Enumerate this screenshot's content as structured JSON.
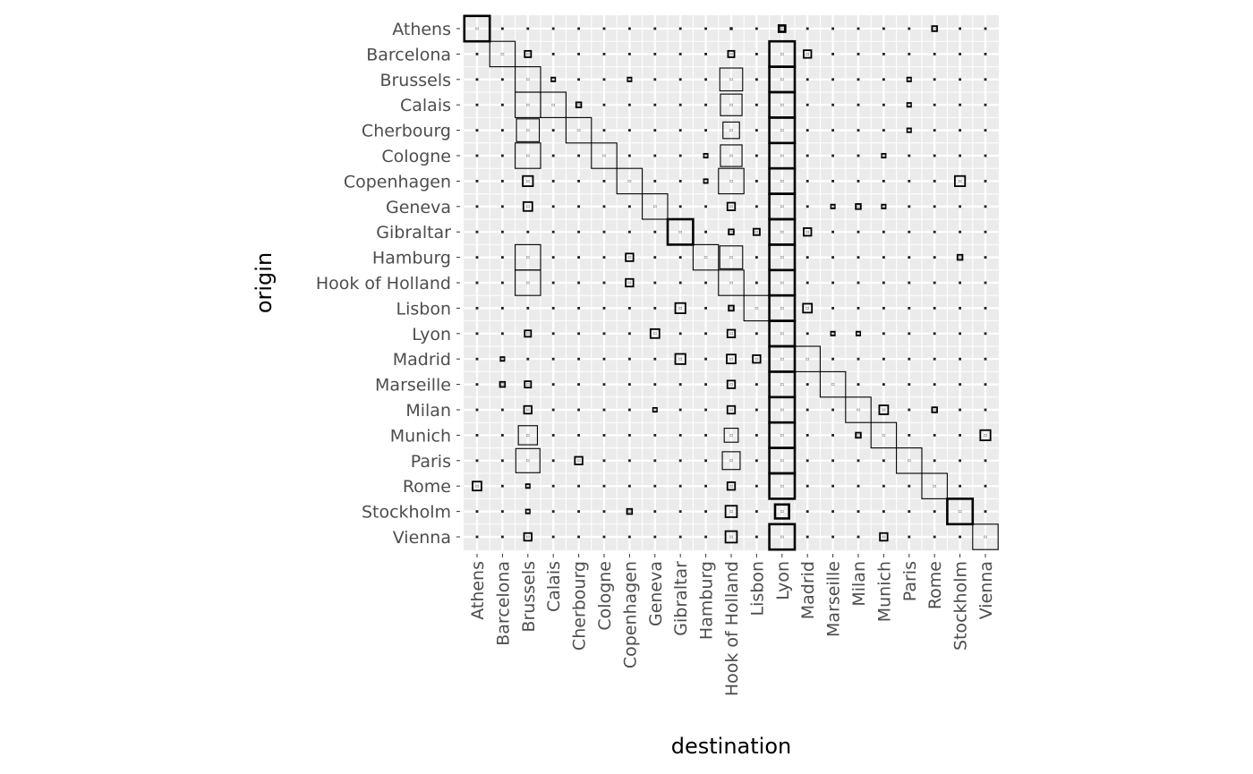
{
  "chart_data": {
    "type": "heatmap",
    "mark": "square sized by value",
    "xlabel": "destination",
    "ylabel": "origin",
    "grid": true,
    "categories": [
      "Athens",
      "Barcelona",
      "Brussels",
      "Calais",
      "Cherbourg",
      "Cologne",
      "Copenhagen",
      "Geneva",
      "Gibraltar",
      "Hamburg",
      "Hook of Holland",
      "Lisbon",
      "Lyon",
      "Madrid",
      "Marseille",
      "Milan",
      "Munich",
      "Paris",
      "Rome",
      "Stockholm",
      "Vienna"
    ],
    "default_value": 0.1,
    "values": {
      "Athens": {
        "Athens": 1.0,
        "Lyon": 0.25,
        "Rome": 0.2,
        "Hook of Holland": 0.12
      },
      "Barcelona": {
        "Barcelona": 1.0,
        "Brussels": 0.25,
        "Hook of Holland": 0.25,
        "Lyon": 1.0,
        "Madrid": 0.3
      },
      "Brussels": {
        "Brussels": 1.0,
        "Calais": 0.15,
        "Copenhagen": 0.15,
        "Hook of Holland": 0.9,
        "Lyon": 1.0,
        "Paris": 0.15
      },
      "Calais": {
        "Brussels": 1.0,
        "Calais": 1.0,
        "Cherbourg": 0.2,
        "Hook of Holland": 0.85,
        "Lyon": 1.0,
        "Paris": 0.15
      },
      "Cherbourg": {
        "Brussels": 0.9,
        "Cherbourg": 1.0,
        "Hook of Holland": 0.65,
        "Lyon": 1.0,
        "Paris": 0.15
      },
      "Cologne": {
        "Brussels": 1.0,
        "Cologne": 1.0,
        "Hamburg": 0.15,
        "Hook of Holland": 0.85,
        "Lyon": 1.0,
        "Munich": 0.15
      },
      "Copenhagen": {
        "Brussels": 0.4,
        "Copenhagen": 1.0,
        "Hamburg": 0.15,
        "Hook of Holland": 1.0,
        "Lyon": 1.0,
        "Stockholm": 0.4
      },
      "Geneva": {
        "Brussels": 0.35,
        "Geneva": 1.0,
        "Hook of Holland": 0.3,
        "Lyon": 1.0,
        "Marseille": 0.15,
        "Milan": 0.2,
        "Munich": 0.15
      },
      "Gibraltar": {
        "Gibraltar": 1.0,
        "Hook of Holland": 0.2,
        "Lisbon": 0.25,
        "Lyon": 1.0,
        "Madrid": 0.3
      },
      "Hamburg": {
        "Brussels": 1.0,
        "Copenhagen": 0.3,
        "Hamburg": 1.0,
        "Hook of Holland": 0.9,
        "Lyon": 1.0,
        "Stockholm": 0.2
      },
      "Hook of Holland": {
        "Brussels": 1.0,
        "Copenhagen": 0.3,
        "Hook of Holland": 1.0,
        "Lyon": 1.0
      },
      "Lisbon": {
        "Gibraltar": 0.4,
        "Hook of Holland": 0.2,
        "Lisbon": 1.0,
        "Lyon": 1.0,
        "Madrid": 0.35
      },
      "Lyon": {
        "Brussels": 0.25,
        "Geneva": 0.35,
        "Hook of Holland": 0.3,
        "Lyon": 1.0,
        "Marseille": 0.15,
        "Milan": 0.15
      },
      "Madrid": {
        "Barcelona": 0.15,
        "Gibraltar": 0.4,
        "Hook of Holland": 0.35,
        "Lisbon": 0.3,
        "Lyon": 1.0,
        "Madrid": 1.0
      },
      "Marseille": {
        "Barcelona": 0.2,
        "Brussels": 0.25,
        "Hook of Holland": 0.3,
        "Lyon": 1.0,
        "Marseille": 1.0
      },
      "Milan": {
        "Brussels": 0.3,
        "Geneva": 0.15,
        "Hook of Holland": 0.3,
        "Lyon": 1.0,
        "Milan": 1.0,
        "Munich": 0.35,
        "Rome": 0.2
      },
      "Munich": {
        "Brussels": 0.75,
        "Hook of Holland": 0.55,
        "Lyon": 1.0,
        "Milan": 0.2,
        "Munich": 1.0,
        "Vienna": 0.4
      },
      "Paris": {
        "Brussels": 0.95,
        "Cherbourg": 0.3,
        "Hook of Holland": 0.7,
        "Lyon": 1.0,
        "Paris": 1.0
      },
      "Rome": {
        "Athens": 0.35,
        "Brussels": 0.15,
        "Hook of Holland": 0.3,
        "Lyon": 1.0,
        "Rome": 1.0
      },
      "Stockholm": {
        "Brussels": 0.15,
        "Copenhagen": 0.2,
        "Hook of Holland": 0.45,
        "Lyon": 0.55,
        "Stockholm": 1.0
      },
      "Vienna": {
        "Brussels": 0.3,
        "Hook of Holland": 0.45,
        "Lyon": 1.0,
        "Munich": 0.3,
        "Vienna": 1.0
      }
    },
    "emphasized": [
      [
        "Athens",
        "Athens"
      ],
      [
        "Athens",
        "Lyon"
      ],
      [
        "Gibraltar",
        "Gibraltar"
      ],
      [
        "Stockholm",
        "Stockholm"
      ],
      [
        "Stockholm",
        "Lyon"
      ],
      [
        "Geneva",
        "Lyon"
      ],
      [
        "Gibraltar",
        "Lyon"
      ],
      [
        "Copenhagen",
        "Lyon"
      ]
    ],
    "emphasized_destination": "Lyon",
    "colors": {
      "panel": "#ebebeb",
      "grid": "#ffffff",
      "mark": "#000000",
      "tick_text": "#4d4d4d"
    }
  }
}
